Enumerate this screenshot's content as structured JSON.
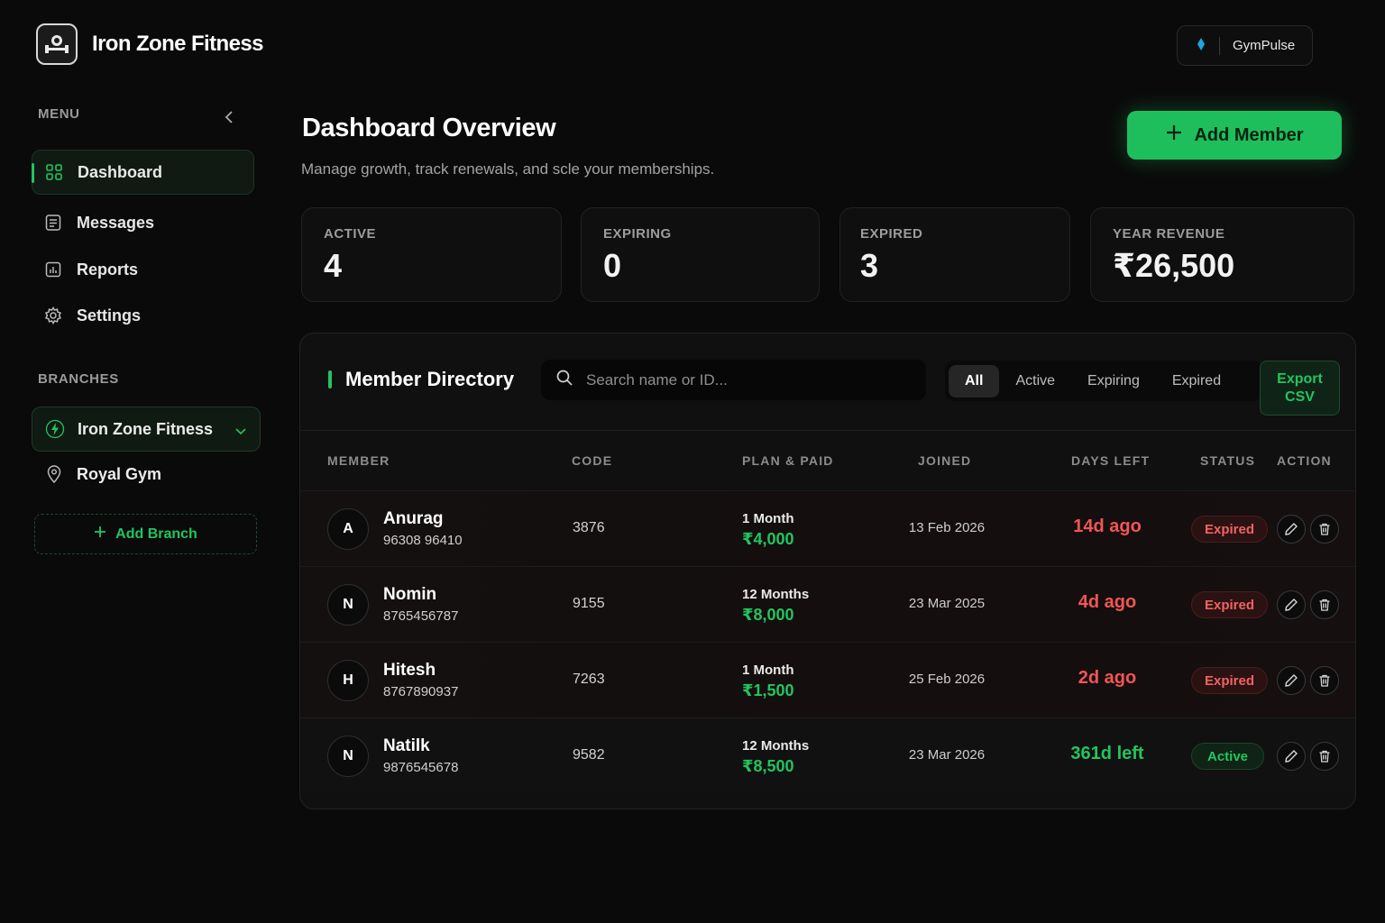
{
  "brand": {
    "name": "Iron Zone Fitness",
    "logo_icon": "barbell-logo-icon"
  },
  "top_right": {
    "label": "GymPulse",
    "icon": "pulse-icon"
  },
  "sidebar": {
    "menu_label": "MENU",
    "items": [
      {
        "label": "Dashboard",
        "icon": "grid-icon",
        "active": true
      },
      {
        "label": "Messages",
        "icon": "message-icon",
        "active": false
      },
      {
        "label": "Reports",
        "icon": "chart-icon",
        "active": false
      },
      {
        "label": "Settings",
        "icon": "gear-icon",
        "active": false
      }
    ],
    "branches_label": "BRANCHES",
    "branches": [
      {
        "label": "Iron Zone Fitness",
        "icon": "bolt-icon",
        "selected": true
      },
      {
        "label": "Royal Gym",
        "icon": "location-pin-icon",
        "selected": false
      }
    ],
    "add_branch": "Add Branch"
  },
  "header": {
    "title": "Dashboard Overview",
    "subtitle": "Manage growth, track renewals, and scle your memberships.",
    "add_member": "Add Member"
  },
  "stats": [
    {
      "label": "ACTIVE",
      "value": "4"
    },
    {
      "label": "EXPIRING",
      "value": "0"
    },
    {
      "label": "EXPIRED",
      "value": "3"
    },
    {
      "label": "YEAR REVENUE",
      "value": "₹26,500"
    }
  ],
  "directory": {
    "title": "Member Directory",
    "search_placeholder": "Search name or ID...",
    "filters": [
      "All",
      "Active",
      "Expiring",
      "Expired"
    ],
    "selected_filter": "All",
    "export": "Export CSV",
    "columns": [
      "MEMBER",
      "CODE",
      "PLAN & PAID",
      "JOINED",
      "DAYS LEFT",
      "STATUS",
      "ACTION"
    ],
    "rows": [
      {
        "initial": "A",
        "name": "Anurag",
        "phone": "96308 96410",
        "code": "3876",
        "plan": "1 Month",
        "paid": "₹4,000",
        "joined": "13 Feb 2026",
        "days": "14d ago",
        "status": "Expired"
      },
      {
        "initial": "N",
        "name": "Nomin",
        "phone": "8765456787",
        "code": "9155",
        "plan": "12 Months",
        "paid": "₹8,000",
        "joined": "23 Mar 2025",
        "days": "4d ago",
        "status": "Expired"
      },
      {
        "initial": "H",
        "name": "Hitesh",
        "phone": "8767890937",
        "code": "7263",
        "plan": "1 Month",
        "paid": "₹1,500",
        "joined": "25 Feb 2026",
        "days": "2d ago",
        "status": "Expired"
      },
      {
        "initial": "N",
        "name": "Natilk",
        "phone": "9876545678",
        "code": "9582",
        "plan": "12 Months",
        "paid": "₹8,500",
        "joined": "23 Mar 2026",
        "days": "361d left",
        "status": "Active"
      }
    ]
  },
  "colors": {
    "accent": "#22c55e",
    "danger": "#f25555",
    "background": "#0a0a0a"
  }
}
